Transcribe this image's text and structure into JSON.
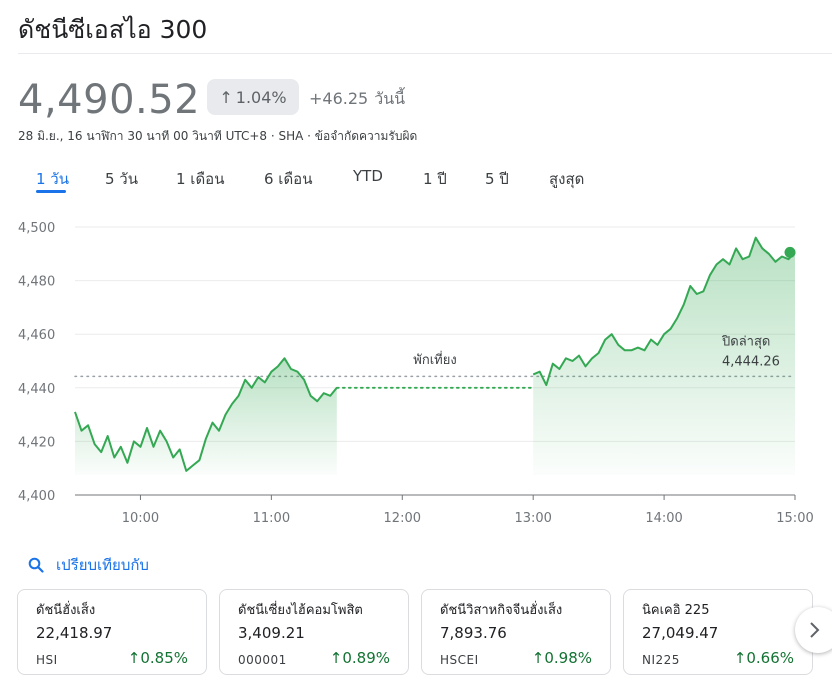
{
  "header": {
    "title": "ดัชนีซีเอสไอ 300"
  },
  "quote": {
    "price": "4,490.52",
    "change_pct": "1.04%",
    "change_abs": "+46.25",
    "change_period": "วันนี้",
    "meta": "28 มิ.ย., 16 นาฬิกา 30 นาที 00 วินาที UTC+8 · SHA · ข้อจำกัดความรับผิด"
  },
  "tabs": [
    "1 วัน",
    "5 วัน",
    "1 เดือน",
    "6 เดือน",
    "YTD",
    "1 ปี",
    "5 ปี",
    "สูงสุด"
  ],
  "colors": {
    "up": "#137333",
    "line": "#34a853",
    "link": "#1a73e8"
  },
  "chart_data": {
    "type": "area",
    "title": "",
    "xlabel": "",
    "ylabel": "",
    "x_ticks": [
      "10:00",
      "11:00",
      "12:00",
      "13:00",
      "14:00",
      "15:00"
    ],
    "y_ticks": [
      "4,400",
      "4,420",
      "4,440",
      "4,460",
      "4,480",
      "4,500"
    ],
    "ylim": [
      4400,
      4500
    ],
    "xlim": [
      "09:30",
      "15:00"
    ],
    "grid": true,
    "previous_close": 4444.26,
    "previous_close_label": "ปิดล่าสุด",
    "previous_close_value_label": "4,444.26",
    "break_label": "พักเที่ยง",
    "series": [
      {
        "segment": "morning",
        "x": [
          "09:30",
          "09:33",
          "09:36",
          "09:39",
          "09:42",
          "09:45",
          "09:48",
          "09:51",
          "09:54",
          "09:57",
          "10:00",
          "10:03",
          "10:06",
          "10:09",
          "10:12",
          "10:15",
          "10:18",
          "10:21",
          "10:24",
          "10:27",
          "10:30",
          "10:33",
          "10:36",
          "10:39",
          "10:42",
          "10:45",
          "10:48",
          "10:51",
          "10:54",
          "10:57",
          "11:00",
          "11:03",
          "11:06",
          "11:09",
          "11:12",
          "11:15",
          "11:18",
          "11:21",
          "11:24",
          "11:27",
          "11:30"
        ],
        "y": [
          4431,
          4424,
          4426,
          4419,
          4416,
          4422,
          4414,
          4418,
          4412,
          4420,
          4418,
          4425,
          4418,
          4424,
          4420,
          4414,
          4417,
          4409,
          4411,
          4413,
          4421,
          4427,
          4424,
          4430,
          4434,
          4437,
          4443,
          4440,
          4444,
          4442,
          4446,
          4448,
          4451,
          4447,
          4446,
          4443,
          4437,
          4435,
          4438,
          4437,
          4440
        ]
      },
      {
        "segment": "afternoon",
        "x": [
          "13:00",
          "13:03",
          "13:06",
          "13:09",
          "13:12",
          "13:15",
          "13:18",
          "13:21",
          "13:24",
          "13:27",
          "13:30",
          "13:33",
          "13:36",
          "13:39",
          "13:42",
          "13:45",
          "13:48",
          "13:51",
          "13:54",
          "13:57",
          "14:00",
          "14:03",
          "14:06",
          "14:09",
          "14:12",
          "14:15",
          "14:18",
          "14:21",
          "14:24",
          "14:27",
          "14:30",
          "14:33",
          "14:36",
          "14:39",
          "14:42",
          "14:45",
          "14:48",
          "14:51",
          "14:54",
          "14:57",
          "15:00"
        ],
        "y": [
          4445,
          4446,
          4441,
          4449,
          4447,
          4451,
          4450,
          4452,
          4448,
          4451,
          4453,
          4458,
          4460,
          4456,
          4454,
          4454,
          4455,
          4454,
          4458,
          4456,
          4460,
          4462,
          4466,
          4471,
          4478,
          4475,
          4476,
          4482,
          4486,
          4488,
          4486,
          4492,
          4488,
          4489,
          4496,
          4492,
          4490,
          4487,
          4489,
          4488,
          4490.52
        ]
      }
    ]
  },
  "compare": {
    "label": "เปรียบเทียบกับ"
  },
  "cards": [
    {
      "name": "ดัชนีฮั่งเส็ง",
      "value": "22,418.97",
      "symbol": "HSI",
      "change": "0.85%"
    },
    {
      "name": "ดัชนีเซี่ยงไฮ้คอมโพสิต",
      "value": "3,409.21",
      "symbol": "000001",
      "change": "0.89%"
    },
    {
      "name": "ดัชนีวิสาหกิจจีนฮั่งเส็ง",
      "value": "7,893.76",
      "symbol": "HSCEI",
      "change": "0.98%"
    },
    {
      "name": "นิคเคอิ 225",
      "value": "27,049.47",
      "symbol": "NI225",
      "change": "0.66%"
    }
  ],
  "icons": {
    "search": "search-icon",
    "next": "chevron-right-icon",
    "up": "arrow-up-icon"
  }
}
